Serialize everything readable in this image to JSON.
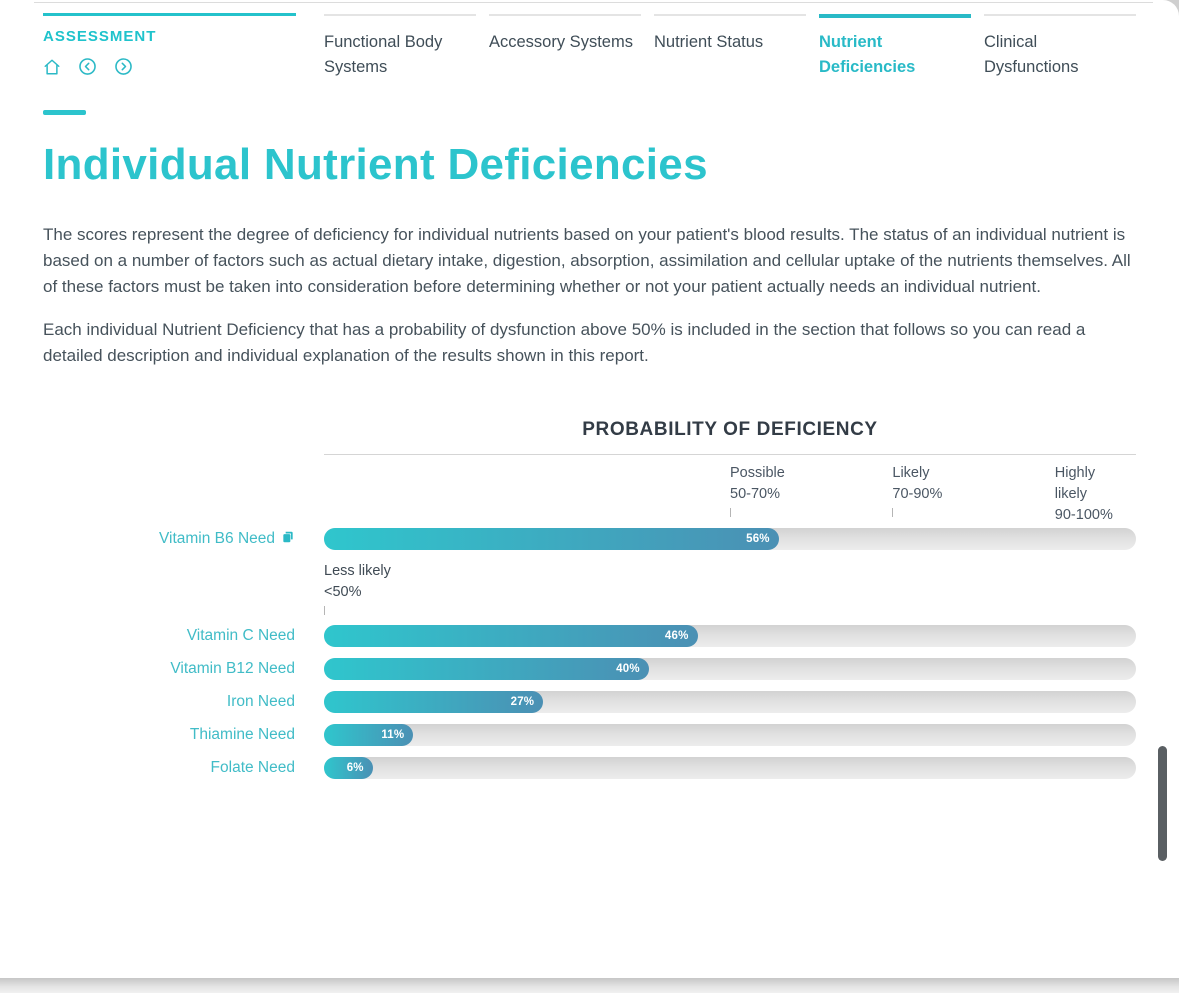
{
  "header": {
    "section_label": "ASSESSMENT",
    "icons": [
      "home-icon",
      "previous-icon",
      "next-icon"
    ],
    "tabs": [
      {
        "label": "Functional Body Systems",
        "active": false
      },
      {
        "label": "Accessory Systems",
        "active": false
      },
      {
        "label": "Nutrient Status",
        "active": false
      },
      {
        "label": "Nutrient Deficiencies",
        "active": true
      },
      {
        "label": "Clinical Dysfunctions",
        "active": false
      }
    ]
  },
  "page": {
    "title": "Individual Nutrient Deficiencies",
    "paragraphs": [
      "The scores represent the degree of deficiency for individual nutrients based on your patient's blood results. The status of an individual nutrient is based on a number of factors such as actual dietary intake, digestion, absorption, assimilation and cellular uptake of the nutrients themselves. All of these factors must be taken into consideration before determining whether or not your patient actually needs an individual nutrient.",
      "Each individual Nutrient Deficiency that has a probability of dysfunction above 50% is included in the section that follows so you can read a detailed description and individual explanation of the results shown in this report."
    ]
  },
  "chart_data": {
    "type": "bar",
    "orientation": "horizontal",
    "title": "PROBABILITY OF DEFICIENCY",
    "categories": [
      "Vitamin B6 Need",
      "Vitamin C Need",
      "Vitamin B12 Need",
      "Iron Need",
      "Thiamine Need",
      "Folate Need"
    ],
    "values": [
      56,
      46,
      40,
      27,
      11,
      6
    ],
    "value_labels": [
      "56%",
      "46%",
      "40%",
      "27%",
      "11%",
      "6%"
    ],
    "xlim": [
      0,
      100
    ],
    "grid": false,
    "thresholds": [
      {
        "label": "Possible",
        "range": "50-70%",
        "position": 50
      },
      {
        "label": "Likely",
        "range": "70-90%",
        "position": 70
      },
      {
        "label": "Highly likely",
        "range": "90-100%",
        "position": 90
      }
    ],
    "less_likely": {
      "label": "Less likely",
      "range": "<50%",
      "position": 0
    },
    "row_icons": [
      {
        "category": "Vitamin B6 Need",
        "icon": "report-pages-icon"
      }
    ]
  },
  "colors": {
    "accent_teal": "#2cc4cd",
    "tab_active": "#29bac7",
    "bar_gradient_start": "#2fc6cd",
    "bar_gradient_end": "#4b90b4",
    "bar_track": "#dcdcdc",
    "body_text": "#46525b",
    "chart_title_text": "#333c46",
    "scrollbar": "#5a5f63"
  }
}
